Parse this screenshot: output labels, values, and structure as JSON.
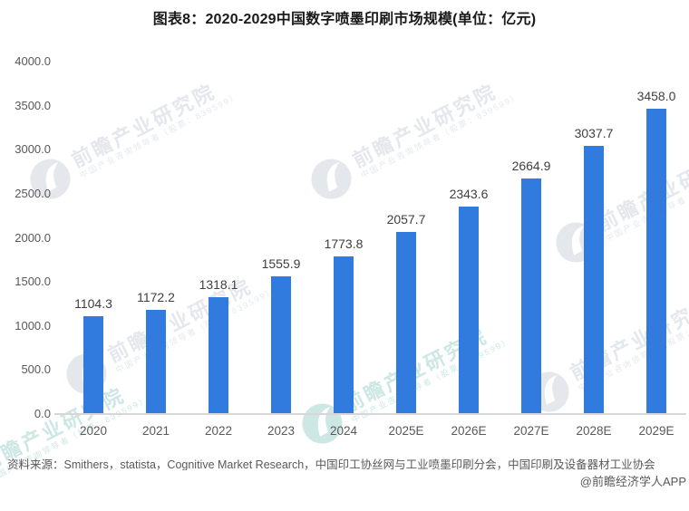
{
  "title": "图表8：2020-2029中国数字喷墨印刷市场规模(单位：亿元)",
  "chart_data": {
    "type": "bar",
    "title": "图表8：2020-2029中国数字喷墨印刷市场规模(单位：亿元)",
    "unit": "亿元",
    "categories": [
      "2020",
      "2021",
      "2022",
      "2023",
      "2024",
      "2025E",
      "2026E",
      "2027E",
      "2028E",
      "2029E"
    ],
    "values": [
      1104.3,
      1172.2,
      1318.1,
      1555.9,
      1773.8,
      2057.7,
      2343.6,
      2664.9,
      3037.7,
      3458.0
    ],
    "data_labels": [
      "1104.3",
      "1172.2",
      "1318.1",
      "1555.9",
      "1773.8",
      "2057.7",
      "2343.6",
      "2664.9",
      "3037.7",
      "3458.0"
    ],
    "xlabel": "",
    "ylabel": "",
    "ylim": [
      0,
      4000
    ],
    "y_ticks": [
      "0.0",
      "500.0",
      "1000.0",
      "1500.0",
      "2000.0",
      "2500.0",
      "3000.0",
      "3500.0",
      "4000.0"
    ],
    "grid": false,
    "legend_position": "none",
    "bar_color": "#317ade",
    "axis_line_color": "#d6d6d6",
    "tick_label_color": "#595959",
    "data_label_color": "#3f3f3f"
  },
  "watermark": {
    "main_text": "前瞻产业研究院",
    "sub_text": "中国产业咨询领导者（股票：839599）",
    "logo_name": "qianzhan-logo-icon"
  },
  "footer": {
    "source_line": "资料来源：Smithers，statista，Cognitive Market Research，中国印工协丝网与工业喷墨印刷分会，中国印刷及设备器材工业协会",
    "credit_line": "@前瞻经济学人APP"
  }
}
